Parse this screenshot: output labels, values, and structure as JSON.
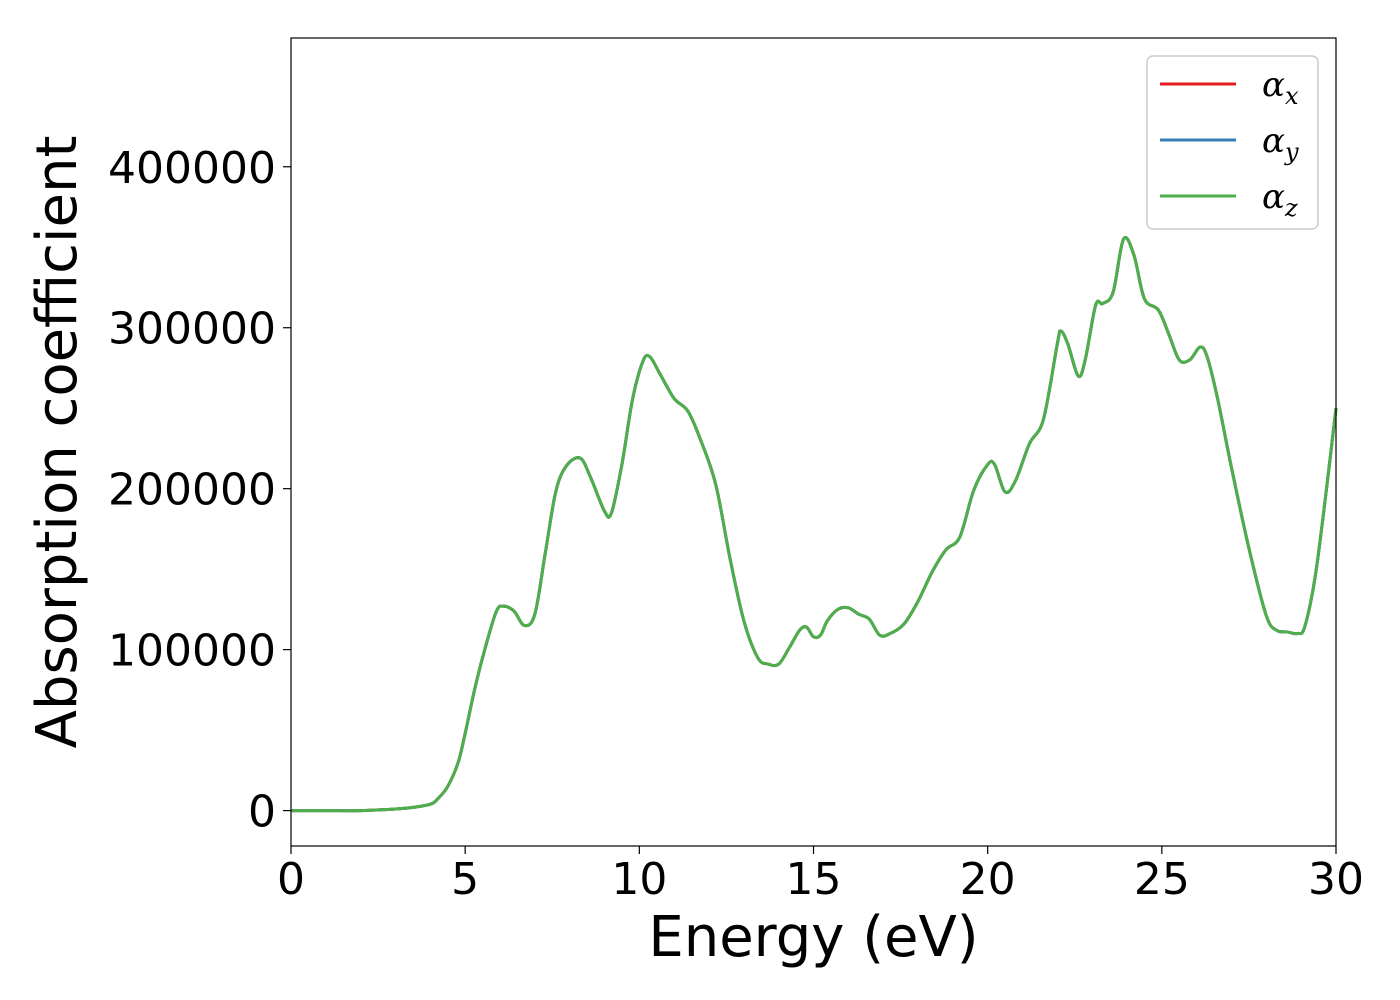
{
  "chart_data": {
    "type": "line",
    "title": "",
    "xlabel": "Energy (eV)",
    "ylabel": "Absorption coefficient",
    "xlim": [
      0,
      30
    ],
    "ylim": [
      -22000,
      480000
    ],
    "xticks": [
      0,
      5,
      10,
      15,
      20,
      25,
      30
    ],
    "yticks": [
      0,
      100000,
      200000,
      300000,
      400000
    ],
    "grid": false,
    "legend_position": "top-right",
    "legend_entries": [
      {
        "base": "α",
        "sub": "x",
        "color": "#e41a1c"
      },
      {
        "base": "α",
        "sub": "y",
        "color": "#377eb8"
      },
      {
        "base": "α",
        "sub": "z",
        "color": "#4daf4a"
      }
    ],
    "x": [
      0,
      1,
      2,
      3,
      3.5,
      4,
      4.2,
      4.5,
      4.8,
      5,
      5.3,
      5.6,
      5.9,
      6.1,
      6.4,
      6.7,
      7.0,
      7.3,
      7.6,
      7.9,
      8.3,
      8.6,
      9.0,
      9.2,
      9.5,
      9.8,
      10.1,
      10.3,
      10.6,
      11.0,
      11.4,
      11.8,
      12.2,
      12.6,
      13.0,
      13.4,
      13.7,
      14.0,
      14.3,
      14.6,
      14.8,
      15.0,
      15.2,
      15.4,
      15.7,
      16.0,
      16.3,
      16.6,
      16.9,
      17.2,
      17.6,
      18.0,
      18.4,
      18.8,
      19.2,
      19.6,
      20.0,
      20.2,
      20.5,
      20.8,
      21.2,
      21.6,
      22.0,
      22.1,
      22.3,
      22.6,
      22.8,
      23.1,
      23.3,
      23.6,
      23.9,
      24.2,
      24.5,
      24.9,
      25.2,
      25.5,
      25.8,
      26.1,
      26.3,
      26.6,
      27.0,
      27.5,
      28.0,
      28.3,
      28.6,
      28.9,
      29.1,
      29.4,
      29.7,
      30.0
    ],
    "series": [
      {
        "name": "αx",
        "color": "#e41a1c",
        "y": [
          0,
          0,
          0,
          1000,
          2000,
          4000,
          7000,
          15000,
          30000,
          48000,
          78000,
          103000,
          124000,
          127000,
          124000,
          115000,
          122000,
          160000,
          198000,
          214000,
          219000,
          207000,
          186000,
          185000,
          215000,
          255000,
          279000,
          282000,
          271000,
          256000,
          248000,
          228000,
          202000,
          157000,
          118000,
          95000,
          91000,
          91000,
          101000,
          112000,
          114000,
          108000,
          109000,
          118000,
          125000,
          126000,
          122000,
          119000,
          109000,
          110000,
          116000,
          130000,
          148000,
          162000,
          170000,
          199000,
          215000,
          215000,
          198000,
          205000,
          228000,
          243000,
          290000,
          298000,
          290000,
          270000,
          280000,
          314000,
          315000,
          322000,
          355000,
          345000,
          318000,
          311000,
          296000,
          280000,
          280000,
          288000,
          282000,
          256000,
          213000,
          163000,
          121000,
          112000,
          111000,
          110000,
          114000,
          145000,
          195000,
          250000
        ]
      },
      {
        "name": "αy",
        "color": "#377eb8",
        "y": [
          0,
          0,
          0,
          1000,
          2000,
          4000,
          7000,
          15000,
          30000,
          48000,
          78000,
          103000,
          124000,
          127000,
          124000,
          115000,
          122000,
          160000,
          198000,
          214000,
          219000,
          207000,
          186000,
          185000,
          215000,
          255000,
          279000,
          282000,
          271000,
          256000,
          248000,
          228000,
          202000,
          157000,
          118000,
          95000,
          91000,
          91000,
          101000,
          112000,
          114000,
          108000,
          109000,
          118000,
          125000,
          126000,
          122000,
          119000,
          109000,
          110000,
          116000,
          130000,
          148000,
          162000,
          170000,
          199000,
          215000,
          215000,
          198000,
          205000,
          228000,
          243000,
          290000,
          298000,
          290000,
          270000,
          280000,
          314000,
          315000,
          322000,
          355000,
          345000,
          318000,
          311000,
          296000,
          280000,
          280000,
          288000,
          282000,
          256000,
          213000,
          163000,
          121000,
          112000,
          111000,
          110000,
          114000,
          145000,
          195000,
          250000
        ]
      },
      {
        "name": "αz",
        "color": "#4daf4a",
        "y": [
          0,
          0,
          0,
          1000,
          2000,
          4000,
          7000,
          15000,
          30000,
          48000,
          78000,
          103000,
          124000,
          127000,
          124000,
          115000,
          122000,
          160000,
          198000,
          214000,
          219000,
          207000,
          186000,
          185000,
          215000,
          255000,
          279000,
          282000,
          271000,
          256000,
          248000,
          228000,
          202000,
          157000,
          118000,
          95000,
          91000,
          91000,
          101000,
          112000,
          114000,
          108000,
          109000,
          118000,
          125000,
          126000,
          122000,
          119000,
          109000,
          110000,
          116000,
          130000,
          148000,
          162000,
          170000,
          199000,
          215000,
          215000,
          198000,
          205000,
          228000,
          243000,
          290000,
          298000,
          290000,
          270000,
          280000,
          314000,
          315000,
          322000,
          355000,
          345000,
          318000,
          311000,
          296000,
          280000,
          280000,
          288000,
          282000,
          256000,
          213000,
          163000,
          121000,
          112000,
          111000,
          110000,
          114000,
          145000,
          195000,
          250000
        ]
      }
    ]
  }
}
